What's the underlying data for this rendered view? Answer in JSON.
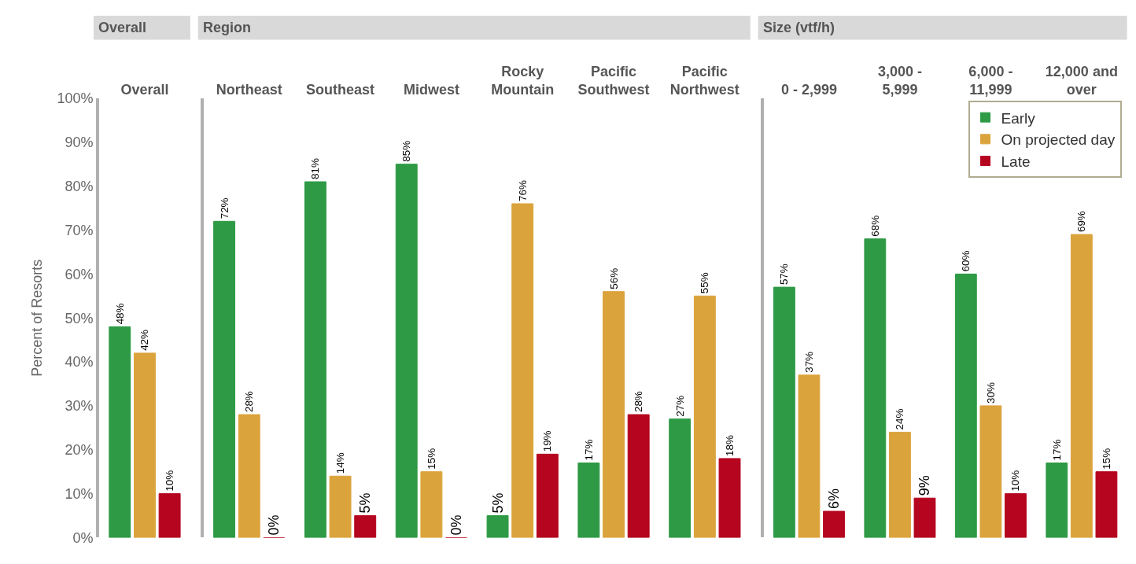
{
  "chart_data": [
    {
      "type": "bar",
      "title": "Overall",
      "categories": [
        "Overall"
      ],
      "ylabel": "Percent of Resorts",
      "ylim": [
        0,
        100
      ],
      "yticks": [
        {
          "value": 0,
          "label": "0%"
        },
        {
          "value": 10,
          "label": "10%"
        },
        {
          "value": 20,
          "label": "20%"
        },
        {
          "value": 30,
          "label": "30%"
        },
        {
          "value": 40,
          "label": "40%"
        },
        {
          "value": 50,
          "label": "50%"
        },
        {
          "value": 60,
          "label": "60%"
        },
        {
          "value": 70,
          "label": "70%"
        },
        {
          "value": 80,
          "label": "80%"
        },
        {
          "value": 90,
          "label": "90%"
        },
        {
          "value": 100,
          "label": "100%"
        }
      ],
      "series": [
        {
          "color": "#2e9a45",
          "values": [
            48
          ],
          "value_labels": [
            "48%"
          ]
        },
        {
          "color": "#dba33c",
          "values": [
            42
          ],
          "value_labels": [
            "42%"
          ]
        },
        {
          "color": "#b5051f",
          "values": [
            10
          ],
          "value_labels": [
            "10%"
          ]
        }
      ]
    },
    {
      "type": "bar",
      "title": "Region",
      "categories": [
        "Northeast",
        "Southeast",
        "Midwest",
        "Rocky Mountain",
        "Pacific Southwest",
        "Pacific Northwest"
      ],
      "ylim": [
        0,
        100
      ],
      "tick_labels": "x",
      "series": [
        {
          "color": "#2e9a45",
          "values": [
            72,
            81,
            85,
            5,
            17,
            27
          ],
          "value_labels": [
            "72%",
            "81%",
            "85%",
            "5%",
            "17%",
            "27%"
          ]
        },
        {
          "color": "#dba33c",
          "values": [
            28,
            14,
            15,
            76,
            56,
            55
          ],
          "value_labels": [
            "28%",
            "14%",
            "15%",
            "76%",
            "56%",
            "55%"
          ]
        },
        {
          "color": "#b5051f",
          "values": [
            0,
            5,
            0,
            19,
            28,
            18
          ],
          "value_labels": [
            "0%",
            "5%",
            "0%",
            "19%",
            "28%",
            "18%"
          ]
        }
      ]
    },
    {
      "type": "bar",
      "title": "Size (vtf/h)",
      "categories": [
        "0 - 2,999",
        "3,000 - 5,999",
        "6,000 - 11,999",
        "12,000 and over"
      ],
      "ylim": [
        0,
        100
      ],
      "tick_labels": "x",
      "legend": "top right",
      "series": [
        {
          "name": "Early",
          "color": "#2e9a45",
          "values": [
            57,
            68,
            60,
            17
          ],
          "value_labels": [
            "57%",
            "68%",
            "60%",
            "17%"
          ]
        },
        {
          "name": "On projected day",
          "color": "#dba33c",
          "values": [
            37,
            24,
            30,
            69
          ],
          "value_labels": [
            "37%",
            "24%",
            "30%",
            "69%"
          ]
        },
        {
          "name": "Late",
          "color": "#b5051f",
          "values": [
            6,
            9,
            10,
            15
          ],
          "value_labels": [
            "6%",
            "9%",
            "10%",
            "15%"
          ]
        }
      ]
    }
  ]
}
